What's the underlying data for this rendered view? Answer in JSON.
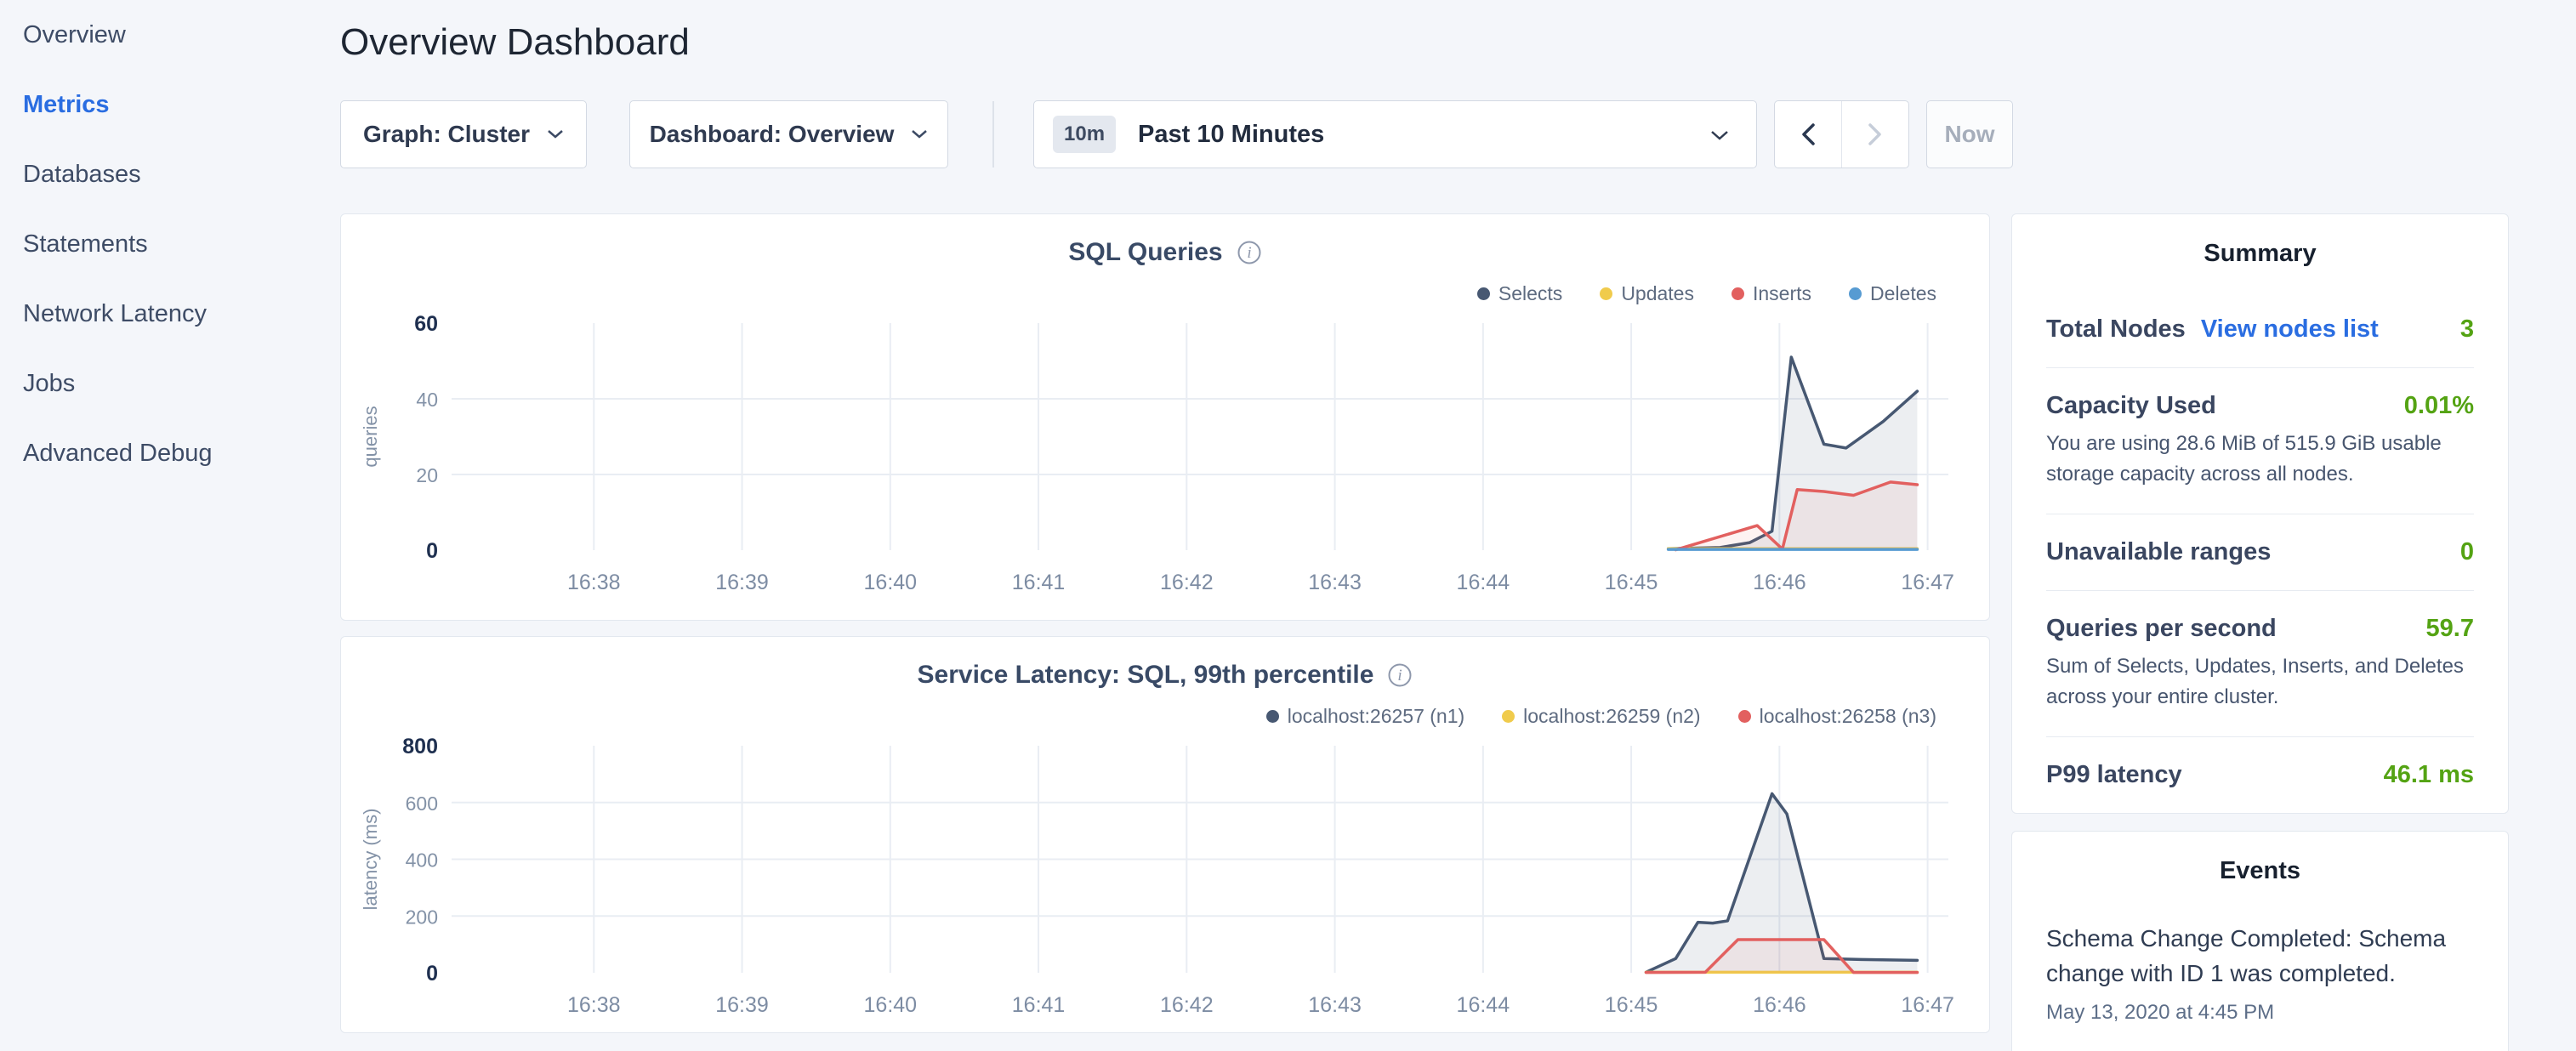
{
  "sidebar": {
    "items": [
      {
        "label": "Overview",
        "active": false
      },
      {
        "label": "Metrics",
        "active": true
      },
      {
        "label": "Databases",
        "active": false
      },
      {
        "label": "Statements",
        "active": false
      },
      {
        "label": "Network Latency",
        "active": false
      },
      {
        "label": "Jobs",
        "active": false
      },
      {
        "label": "Advanced Debug",
        "active": false
      }
    ]
  },
  "header": {
    "title": "Overview Dashboard"
  },
  "toolbar": {
    "graph_dropdown_label": "Graph: Cluster",
    "dashboard_dropdown_label": "Dashboard: Overview",
    "time_badge": "10m",
    "time_label": "Past 10 Minutes",
    "now_label": "Now"
  },
  "summary": {
    "title": "Summary",
    "rows": [
      {
        "label": "Total Nodes",
        "link": "View nodes list",
        "value": "3"
      },
      {
        "label": "Capacity Used",
        "value": "0.01%",
        "description": "You are using 28.6 MiB of 515.9 GiB usable storage capacity across all nodes."
      },
      {
        "label": "Unavailable ranges",
        "value": "0"
      },
      {
        "label": "Queries per second",
        "value": "59.7",
        "description": "Sum of Selects, Updates, Inserts, and Deletes across your entire cluster."
      },
      {
        "label": "P99 latency",
        "value": "46.1 ms"
      }
    ]
  },
  "events": {
    "title": "Events",
    "items": [
      {
        "text": "Schema Change Completed: Schema change with ID 1 was completed.",
        "timestamp": "May 13, 2020 at 4:45 PM"
      }
    ]
  },
  "colors": {
    "accent_blue": "#2a6de1",
    "value_green": "#54a313",
    "series_navy": "#475872",
    "series_yellow": "#f0cb4c",
    "series_red": "#e2605f",
    "series_blue": "#579bd2",
    "gridline": "#e9edf3"
  },
  "chart_data": [
    {
      "type": "area",
      "title": "SQL Queries",
      "ylabel": "queries",
      "ylim": [
        0,
        60
      ],
      "y_ticks": [
        0,
        20,
        40,
        60
      ],
      "y_grid": [
        20,
        40
      ],
      "x_range": [
        37.04,
        47.14
      ],
      "x_ticks": [
        {
          "value": 38,
          "label": "16:38"
        },
        {
          "value": 39,
          "label": "16:39"
        },
        {
          "value": 40,
          "label": "16:40"
        },
        {
          "value": 41,
          "label": "16:41"
        },
        {
          "value": 42,
          "label": "16:42"
        },
        {
          "value": 43,
          "label": "16:43"
        },
        {
          "value": 44,
          "label": "16:44"
        },
        {
          "value": 45,
          "label": "16:45"
        },
        {
          "value": 46,
          "label": "16:46"
        },
        {
          "value": 47,
          "label": "16:47"
        }
      ],
      "series": [
        {
          "name": "Selects",
          "color": "#475872",
          "fill": "rgba(71,88,114,0.10)",
          "points": [
            [
              45.25,
              0.4
            ],
            [
              45.6,
              0.7
            ],
            [
              45.8,
              2
            ],
            [
              45.95,
              5
            ],
            [
              46.08,
              51
            ],
            [
              46.3,
              28
            ],
            [
              46.45,
              27
            ],
            [
              46.7,
              34
            ],
            [
              46.93,
              42
            ]
          ]
        },
        {
          "name": "Updates",
          "color": "#f0cb4c",
          "fill": "none",
          "points": [
            [
              45.25,
              0.4
            ],
            [
              46.93,
              0.4
            ]
          ]
        },
        {
          "name": "Inserts",
          "color": "#e2605f",
          "fill": "rgba(226,96,95,0.08)",
          "points": [
            [
              45.3,
              0.1
            ],
            [
              45.85,
              6.5
            ],
            [
              46.02,
              0.3
            ],
            [
              46.12,
              16
            ],
            [
              46.3,
              15.5
            ],
            [
              46.5,
              14.5
            ],
            [
              46.75,
              18
            ],
            [
              46.93,
              17.3
            ]
          ]
        },
        {
          "name": "Deletes",
          "color": "#579bd2",
          "fill": "none",
          "points": [
            [
              45.25,
              0.2
            ],
            [
              46.93,
              0.2
            ]
          ]
        }
      ]
    },
    {
      "type": "area",
      "title": "Service Latency: SQL, 99th percentile",
      "ylabel": "latency (ms)",
      "ylim": [
        0,
        800
      ],
      "y_ticks": [
        0,
        200,
        400,
        600,
        800
      ],
      "y_grid": [
        200,
        400,
        600
      ],
      "x_range": [
        37.04,
        47.14
      ],
      "x_ticks": [
        {
          "value": 38,
          "label": "16:38"
        },
        {
          "value": 39,
          "label": "16:39"
        },
        {
          "value": 40,
          "label": "16:40"
        },
        {
          "value": 41,
          "label": "16:41"
        },
        {
          "value": 42,
          "label": "16:42"
        },
        {
          "value": 43,
          "label": "16:43"
        },
        {
          "value": 44,
          "label": "16:44"
        },
        {
          "value": 45,
          "label": "16:45"
        },
        {
          "value": 46,
          "label": "16:46"
        },
        {
          "value": 47,
          "label": "16:47"
        }
      ],
      "series": [
        {
          "name": "localhost:26257 (n1)",
          "color": "#475872",
          "fill": "rgba(71,88,114,0.10)",
          "points": [
            [
              45.1,
              2
            ],
            [
              45.3,
              50
            ],
            [
              45.45,
              178
            ],
            [
              45.55,
              175
            ],
            [
              45.65,
              183
            ],
            [
              45.95,
              631
            ],
            [
              46.05,
              560
            ],
            [
              46.3,
              50
            ],
            [
              46.55,
              47
            ],
            [
              46.93,
              44
            ]
          ]
        },
        {
          "name": "localhost:26259 (n2)",
          "color": "#f0cb4c",
          "fill": "none",
          "points": [
            [
              45.1,
              2
            ],
            [
              46.93,
              2
            ]
          ]
        },
        {
          "name": "localhost:26258 (n3)",
          "color": "#e2605f",
          "fill": "rgba(226,96,95,0.08)",
          "points": [
            [
              45.1,
              1
            ],
            [
              45.5,
              2
            ],
            [
              45.72,
              117
            ],
            [
              46.3,
              117
            ],
            [
              46.5,
              1
            ],
            [
              46.93,
              1
            ]
          ]
        }
      ]
    }
  ]
}
